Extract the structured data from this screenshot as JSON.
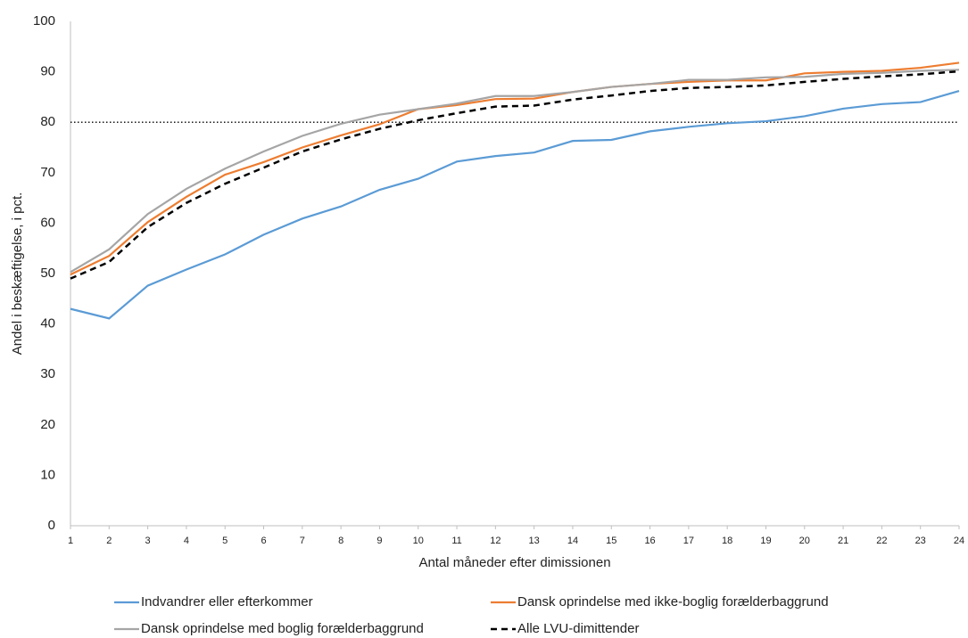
{
  "chart_data": {
    "type": "line",
    "x_label": "Antal måneder efter dimissionen",
    "y_label": "Andel i beskæftigelse, i pct.",
    "x": [
      1,
      2,
      3,
      4,
      5,
      6,
      7,
      8,
      9,
      10,
      11,
      12,
      13,
      14,
      15,
      16,
      17,
      18,
      19,
      20,
      21,
      22,
      23,
      24
    ],
    "xlim": [
      1,
      24
    ],
    "xticks": [
      1,
      2,
      3,
      4,
      5,
      6,
      7,
      8,
      9,
      10,
      11,
      12,
      13,
      14,
      15,
      16,
      17,
      18,
      19,
      20,
      21,
      22,
      23,
      24
    ],
    "ylim": [
      0,
      100
    ],
    "yticks": [
      0,
      10,
      20,
      30,
      40,
      50,
      60,
      70,
      80,
      90,
      100
    ],
    "reference_line": 80,
    "grid": false,
    "legend": "bottom",
    "series": [
      {
        "name": "Indvandrer eller efterkommer",
        "color": "#5b9bd5",
        "dash": false,
        "values": [
          43,
          41.1,
          47.6,
          50.8,
          53.8,
          57.7,
          60.9,
          63.3,
          66.6,
          68.8,
          72.2,
          73.3,
          74,
          76.3,
          76.5,
          78.2,
          79.1,
          79.8,
          80.2,
          81.2,
          82.7,
          83.6,
          84,
          86.2
        ]
      },
      {
        "name": "Dansk oprindelse med ikke-boglig forælderbaggrund",
        "color": "#ed7d31",
        "dash": false,
        "values": [
          49.8,
          53.5,
          60.2,
          65.2,
          69.6,
          72.1,
          75,
          77.4,
          79.6,
          82.6,
          83.4,
          84.6,
          84.7,
          86,
          87,
          87.6,
          88,
          88.3,
          88.3,
          89.7,
          90,
          90.2,
          90.8,
          91.8
        ]
      },
      {
        "name": "Dansk oprindelse med boglig forælderbaggrund",
        "color": "#a5a5a5",
        "dash": false,
        "values": [
          50.3,
          54.8,
          61.8,
          66.8,
          70.8,
          74.2,
          77.3,
          79.7,
          81.5,
          82.6,
          83.7,
          85.2,
          85.2,
          86,
          87,
          87.6,
          88.4,
          88.4,
          88.9,
          89,
          89.6,
          89.8,
          90.2,
          90.4
        ]
      },
      {
        "name": "Alle LVU-dimittender",
        "color": "#000000",
        "dash": true,
        "values": [
          49,
          52.3,
          59.2,
          64,
          67.8,
          71,
          74.2,
          76.6,
          78.7,
          80.4,
          81.8,
          83.1,
          83.3,
          84.5,
          85.3,
          86.2,
          86.8,
          87,
          87.3,
          88,
          88.6,
          89.1,
          89.5,
          90.1
        ]
      }
    ]
  }
}
